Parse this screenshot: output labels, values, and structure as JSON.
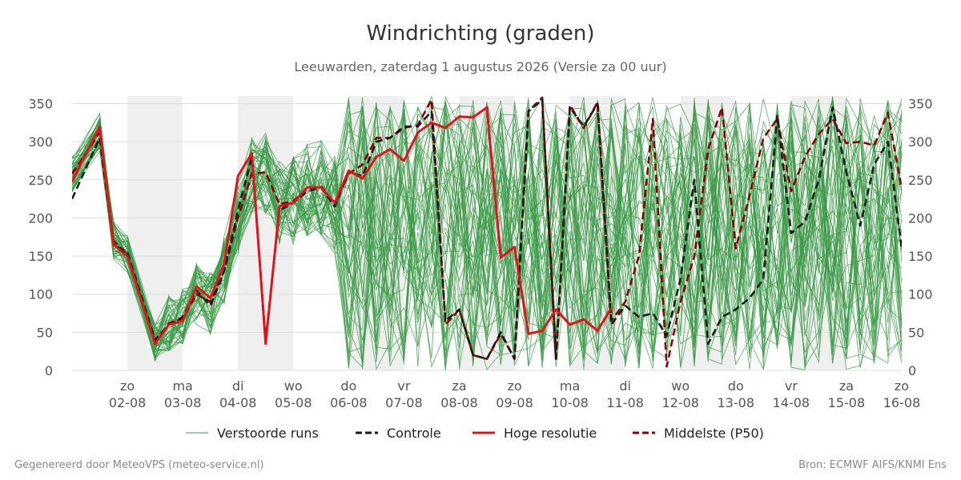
{
  "chart_data": {
    "type": "line",
    "title": "Windrichting (graden)",
    "subtitle": "Leeuwarden, zaterdag  1 augustus 2026 (Versie za 00 uur)",
    "xlabel": "",
    "ylabel": "",
    "ylim": [
      0,
      360
    ],
    "yticks": [
      0,
      50,
      100,
      150,
      200,
      250,
      300,
      350
    ],
    "grid": true,
    "legend_position": "bottom",
    "x_start_day": 1,
    "x_end_day": 16,
    "weekend_shading": [
      [
        2,
        3
      ],
      [
        4,
        5
      ],
      [
        6,
        7
      ],
      [
        8,
        9
      ],
      [
        10,
        11
      ],
      [
        12,
        13
      ],
      [
        14,
        15
      ]
    ],
    "x_ticks": [
      {
        "day": 2,
        "weekday": "zo",
        "date": "02-08"
      },
      {
        "day": 3,
        "weekday": "ma",
        "date": "03-08"
      },
      {
        "day": 4,
        "weekday": "di",
        "date": "04-08"
      },
      {
        "day": 5,
        "weekday": "wo",
        "date": "05-08"
      },
      {
        "day": 6,
        "weekday": "do",
        "date": "06-08"
      },
      {
        "day": 7,
        "weekday": "vr",
        "date": "07-08"
      },
      {
        "day": 8,
        "weekday": "za",
        "date": "08-08"
      },
      {
        "day": 9,
        "weekday": "zo",
        "date": "09-08"
      },
      {
        "day": 10,
        "weekday": "ma",
        "date": "10-08"
      },
      {
        "day": 11,
        "weekday": "di",
        "date": "11-08"
      },
      {
        "day": 12,
        "weekday": "wo",
        "date": "12-08"
      },
      {
        "day": 13,
        "weekday": "do",
        "date": "13-08"
      },
      {
        "day": 14,
        "weekday": "vr",
        "date": "14-08"
      },
      {
        "day": 15,
        "weekday": "za",
        "date": "15-08"
      },
      {
        "day": 16,
        "weekday": "zo",
        "date": "16-08"
      }
    ],
    "ensemble_member_count": 50,
    "series": [
      {
        "name": "Controle",
        "color": "#1a1a1a",
        "style": "dashed",
        "points": [
          [
            1.0,
            225
          ],
          [
            1.5,
            305
          ],
          [
            1.75,
            165
          ],
          [
            2.0,
            155
          ],
          [
            2.5,
            40
          ],
          [
            2.75,
            60
          ],
          [
            3.0,
            70
          ],
          [
            3.25,
            105
          ],
          [
            3.5,
            85
          ],
          [
            3.75,
            130
          ],
          [
            4.0,
            210
          ],
          [
            4.25,
            280
          ],
          [
            4.5,
            40
          ],
          [
            4.75,
            210
          ],
          [
            5.0,
            220
          ],
          [
            5.25,
            235
          ],
          [
            5.5,
            240
          ],
          [
            5.75,
            215
          ],
          [
            6.0,
            260
          ],
          [
            6.25,
            255
          ],
          [
            6.5,
            300
          ],
          [
            6.75,
            305
          ],
          [
            7.0,
            320
          ],
          [
            7.25,
            320
          ],
          [
            7.5,
            340
          ],
          [
            7.75,
            65
          ],
          [
            8.0,
            80
          ],
          [
            8.25,
            20
          ],
          [
            8.5,
            15
          ],
          [
            8.75,
            50
          ],
          [
            9.0,
            15
          ],
          [
            9.25,
            340
          ],
          [
            9.5,
            355
          ],
          [
            9.75,
            15
          ],
          [
            10.0,
            345
          ],
          [
            10.25,
            320
          ],
          [
            10.5,
            350
          ],
          [
            10.75,
            60
          ],
          [
            11.0,
            85
          ],
          [
            11.25,
            70
          ],
          [
            11.5,
            75
          ],
          [
            11.75,
            45
          ],
          [
            12.0,
            120
          ],
          [
            12.25,
            250
          ],
          [
            12.5,
            35
          ],
          [
            12.75,
            70
          ],
          [
            13.0,
            80
          ],
          [
            13.25,
            95
          ],
          [
            13.5,
            120
          ],
          [
            13.75,
            335
          ],
          [
            14.0,
            180
          ],
          [
            14.25,
            195
          ],
          [
            14.5,
            250
          ],
          [
            14.75,
            345
          ],
          [
            15.0,
            260
          ],
          [
            15.25,
            190
          ],
          [
            15.5,
            270
          ],
          [
            15.75,
            300
          ],
          [
            16.0,
            160
          ]
        ]
      },
      {
        "name": "Hoge resolutie",
        "color": "#e0141c",
        "style": "solid",
        "points": [
          [
            1.0,
            248
          ],
          [
            1.5,
            320
          ],
          [
            1.75,
            165
          ],
          [
            2.0,
            150
          ],
          [
            2.5,
            35
          ],
          [
            2.75,
            60
          ],
          [
            3.0,
            65
          ],
          [
            3.25,
            110
          ],
          [
            3.5,
            95
          ],
          [
            3.75,
            140
          ],
          [
            4.0,
            255
          ],
          [
            4.25,
            285
          ],
          [
            4.5,
            35
          ],
          [
            4.75,
            215
          ],
          [
            5.0,
            220
          ],
          [
            5.25,
            240
          ],
          [
            5.5,
            240
          ],
          [
            5.75,
            220
          ],
          [
            6.0,
            262
          ],
          [
            6.25,
            252
          ],
          [
            6.5,
            280
          ],
          [
            6.75,
            290
          ],
          [
            7.0,
            275
          ],
          [
            7.25,
            312
          ],
          [
            7.5,
            325
          ],
          [
            7.75,
            318
          ],
          [
            8.0,
            333
          ],
          [
            8.25,
            332
          ],
          [
            8.5,
            345
          ],
          [
            8.75,
            148
          ],
          [
            9.0,
            162
          ],
          [
            9.25,
            48
          ],
          [
            9.5,
            52
          ],
          [
            9.75,
            80
          ],
          [
            10.0,
            60
          ],
          [
            10.25,
            67
          ],
          [
            10.5,
            52
          ],
          [
            10.75,
            82
          ]
        ]
      },
      {
        "name": "Middelste (P50)",
        "color": "#8b0000",
        "style": "dashed",
        "points": [
          [
            1.0,
            258
          ],
          [
            1.5,
            312
          ],
          [
            1.75,
            170
          ],
          [
            2.0,
            152
          ],
          [
            2.5,
            37
          ],
          [
            2.75,
            62
          ],
          [
            3.0,
            68
          ],
          [
            3.25,
            100
          ],
          [
            3.5,
            90
          ],
          [
            3.75,
            130
          ],
          [
            4.0,
            200
          ],
          [
            4.25,
            258
          ],
          [
            4.5,
            260
          ],
          [
            4.75,
            218
          ],
          [
            5.0,
            222
          ],
          [
            5.25,
            238
          ],
          [
            5.5,
            242
          ],
          [
            5.75,
            218
          ],
          [
            6.0,
            258
          ],
          [
            6.25,
            270
          ],
          [
            6.5,
            305
          ],
          [
            6.75,
            305
          ],
          [
            7.0,
            318
          ],
          [
            7.25,
            322
          ],
          [
            7.5,
            355
          ],
          [
            7.75,
            60
          ],
          [
            8.0,
            80
          ],
          [
            8.25,
            20
          ],
          [
            8.5,
            15
          ],
          [
            8.75,
            48
          ],
          [
            9.0,
            15
          ],
          [
            9.25,
            340
          ],
          [
            9.5,
            358
          ],
          [
            9.75,
            12
          ],
          [
            10.0,
            348
          ],
          [
            10.25,
            318
          ],
          [
            10.5,
            352
          ],
          [
            10.75,
            65
          ],
          [
            11.0,
            90
          ],
          [
            11.25,
            150
          ],
          [
            11.5,
            330
          ],
          [
            11.75,
            5
          ],
          [
            12.0,
            90
          ],
          [
            12.25,
            150
          ],
          [
            12.5,
            290
          ],
          [
            12.75,
            345
          ],
          [
            13.0,
            160
          ],
          [
            13.25,
            230
          ],
          [
            13.5,
            305
          ],
          [
            13.75,
            330
          ],
          [
            14.0,
            235
          ],
          [
            14.25,
            280
          ],
          [
            14.5,
            310
          ],
          [
            14.75,
            330
          ],
          [
            15.0,
            298
          ],
          [
            15.25,
            300
          ],
          [
            15.5,
            295
          ],
          [
            15.75,
            338
          ],
          [
            16.0,
            238
          ]
        ]
      }
    ],
    "legend": [
      {
        "label": "Verstoorde runs",
        "color": "#3a9a45",
        "style": "thin"
      },
      {
        "label": "Controle",
        "color": "#1a1a1a",
        "style": "dashed"
      },
      {
        "label": "Hoge resolutie",
        "color": "#e0141c",
        "style": "solid"
      },
      {
        "label": "Middelste (P50)",
        "color": "#8b0000",
        "style": "dashed"
      }
    ]
  },
  "colors": {
    "ensemble": "#3a9a45",
    "weekend_shade": "#efefef",
    "grid": "#dddddd"
  },
  "footer": {
    "left": "Gegenereerd door MeteoVPS (meteo-service.nl)",
    "right": "Bron: ECMWF AIFS/KNMI Ens"
  }
}
